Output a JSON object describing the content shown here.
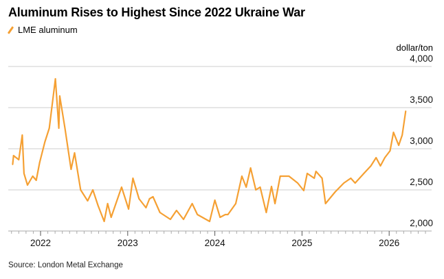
{
  "title": "Aluminum Rises to Highest Since 2022 Ukraine War",
  "legend": {
    "label": "LME aluminum",
    "icon": "line-swatch-icon"
  },
  "source": "Source: London Metal Exchange",
  "colors": {
    "series": "#f5a033",
    "grid": "#d6d6d6"
  },
  "chart_data": {
    "type": "line",
    "title": "Aluminum Rises to Highest Since 2022 Ukraine War",
    "xlabel": "",
    "ylabel": "dollar/ton",
    "ylim": [
      2000,
      4000
    ],
    "xlim": [
      2021.6,
      2026.5
    ],
    "yticks": [
      2000,
      2500,
      3000,
      3500,
      4000
    ],
    "ytick_labels": [
      "2,000",
      "2,500",
      "3,000",
      "3,500",
      "4,000"
    ],
    "xticks": [
      2022,
      2023,
      2024,
      2025,
      2026
    ],
    "xtick_labels": [
      "2022",
      "2023",
      "2024",
      "2025",
      "2026"
    ],
    "grid": true,
    "legend_position": "top-left",
    "series": [
      {
        "name": "LME aluminum",
        "x": [
          2021.68,
          2021.69,
          2021.75,
          2021.79,
          2021.81,
          2021.85,
          2021.91,
          2021.95,
          2021.99,
          2022.05,
          2022.1,
          2022.17,
          2022.21,
          2022.22,
          2022.28,
          2022.35,
          2022.39,
          2022.46,
          2022.54,
          2022.6,
          2022.66,
          2022.73,
          2022.77,
          2022.81,
          2022.93,
          2023.01,
          2023.06,
          2023.13,
          2023.21,
          2023.25,
          2023.29,
          2023.37,
          2023.49,
          2023.56,
          2023.64,
          2023.74,
          2023.8,
          2023.94,
          2024.0,
          2024.06,
          2024.12,
          2024.15,
          2024.24,
          2024.31,
          2024.36,
          2024.41,
          2024.47,
          2024.52,
          2024.59,
          2024.65,
          2024.69,
          2024.75,
          2024.85,
          2024.95,
          2025.02,
          2025.06,
          2025.14,
          2025.16,
          2025.23,
          2025.27,
          2025.38,
          2025.48,
          2025.56,
          2025.61,
          2025.71,
          2025.79,
          2025.85,
          2025.9,
          2025.95,
          2026.01,
          2026.05,
          2026.11,
          2026.15,
          2026.19
        ],
        "values": [
          2808,
          2917,
          2867,
          3167,
          2700,
          2558,
          2667,
          2617,
          2833,
          3083,
          3250,
          3850,
          3250,
          3642,
          3250,
          2750,
          2950,
          2500,
          2367,
          2500,
          2308,
          2117,
          2333,
          2167,
          2533,
          2267,
          2642,
          2392,
          2283,
          2392,
          2417,
          2225,
          2142,
          2250,
          2142,
          2333,
          2200,
          2117,
          2375,
          2167,
          2200,
          2200,
          2333,
          2667,
          2533,
          2767,
          2500,
          2533,
          2225,
          2542,
          2333,
          2667,
          2667,
          2583,
          2492,
          2700,
          2642,
          2725,
          2642,
          2333,
          2475,
          2583,
          2642,
          2583,
          2700,
          2792,
          2892,
          2792,
          2892,
          2975,
          3200,
          3042,
          3167,
          3458
        ]
      }
    ]
  }
}
